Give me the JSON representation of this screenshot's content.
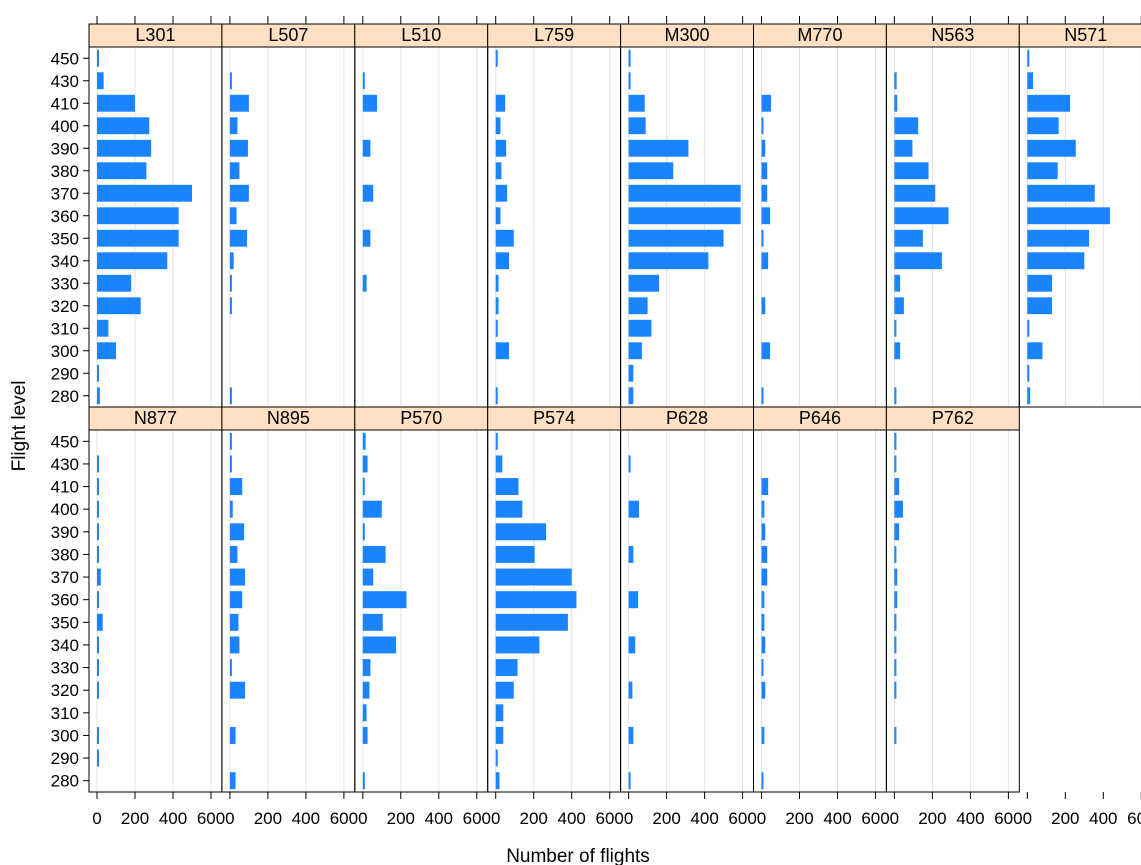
{
  "chart_data": {
    "type": "bar",
    "orientation": "horizontal",
    "ylabel": "Flight level",
    "xlabel": "Number of flights",
    "flight_levels": [
      "280",
      "290",
      "300",
      "310",
      "320",
      "330",
      "340",
      "350",
      "360",
      "370",
      "380",
      "390",
      "400",
      "410",
      "430",
      "450"
    ],
    "xlim": [
      0,
      650
    ],
    "xticks": [
      0,
      200,
      400,
      600
    ],
    "grid": true,
    "bar_color": "#1a84ff",
    "strip_color": "#ffe0c2",
    "panels": [
      {
        "name": "L301",
        "values": [
          15,
          10,
          100,
          60,
          230,
          180,
          370,
          430,
          430,
          500,
          260,
          285,
          275,
          200,
          35,
          5
        ]
      },
      {
        "name": "L507",
        "values": [
          8,
          0,
          0,
          0,
          8,
          8,
          20,
          90,
          35,
          100,
          50,
          95,
          40,
          100,
          8,
          0
        ]
      },
      {
        "name": "L510",
        "values": [
          0,
          0,
          0,
          0,
          0,
          20,
          0,
          40,
          0,
          55,
          0,
          40,
          0,
          75,
          5,
          0
        ]
      },
      {
        "name": "L759",
        "values": [
          5,
          0,
          70,
          5,
          15,
          15,
          70,
          95,
          25,
          60,
          30,
          55,
          25,
          50,
          0,
          5
        ]
      },
      {
        "name": "M300",
        "values": [
          25,
          25,
          70,
          120,
          100,
          160,
          420,
          500,
          590,
          590,
          235,
          315,
          90,
          85,
          5,
          5
        ]
      },
      {
        "name": "M770",
        "values": [
          10,
          0,
          45,
          0,
          20,
          0,
          35,
          10,
          45,
          30,
          30,
          20,
          10,
          50,
          0,
          0
        ]
      },
      {
        "name": "N563",
        "values": [
          10,
          0,
          30,
          8,
          50,
          30,
          250,
          150,
          285,
          215,
          180,
          95,
          125,
          15,
          12,
          0
        ]
      },
      {
        "name": "N571",
        "values": [
          15,
          10,
          80,
          8,
          130,
          130,
          300,
          325,
          435,
          355,
          160,
          255,
          165,
          225,
          30,
          10
        ]
      },
      {
        "name": "N877",
        "values": [
          0,
          5,
          5,
          0,
          10,
          5,
          10,
          30,
          5,
          20,
          5,
          10,
          10,
          5,
          5,
          0
        ]
      },
      {
        "name": "N895",
        "values": [
          30,
          0,
          30,
          0,
          80,
          10,
          50,
          45,
          65,
          80,
          40,
          75,
          15,
          65,
          10,
          10
        ]
      },
      {
        "name": "P570",
        "values": [
          10,
          0,
          25,
          20,
          35,
          40,
          175,
          105,
          230,
          55,
          120,
          10,
          100,
          5,
          25,
          15
        ]
      },
      {
        "name": "P574",
        "values": [
          20,
          10,
          40,
          40,
          95,
          115,
          230,
          380,
          425,
          400,
          205,
          265,
          140,
          120,
          35,
          10
        ]
      },
      {
        "name": "P628",
        "values": [
          5,
          0,
          25,
          0,
          20,
          0,
          35,
          0,
          50,
          0,
          25,
          0,
          55,
          0,
          5,
          0
        ]
      },
      {
        "name": "P646",
        "values": [
          10,
          0,
          15,
          0,
          20,
          10,
          20,
          15,
          15,
          30,
          30,
          20,
          15,
          35,
          0,
          0
        ]
      },
      {
        "name": "P762",
        "values": [
          0,
          0,
          5,
          0,
          10,
          10,
          10,
          10,
          15,
          15,
          10,
          25,
          45,
          25,
          5,
          5
        ]
      }
    ]
  }
}
